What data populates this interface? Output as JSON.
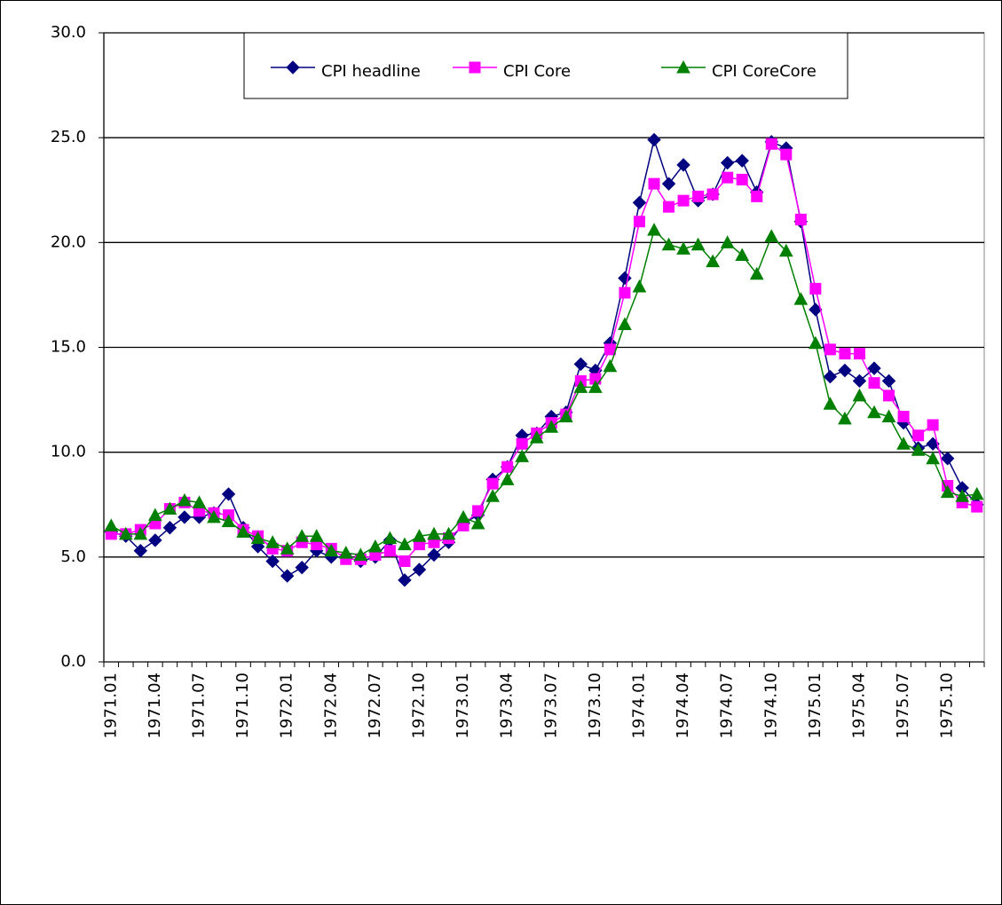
{
  "chart_data": {
    "type": "line",
    "categories": [
      "1971.01",
      null,
      null,
      "1971.04",
      null,
      null,
      "1971.07",
      null,
      null,
      "1971.10",
      null,
      null,
      "1972.01",
      null,
      null,
      "1972.04",
      null,
      null,
      "1972.07",
      null,
      null,
      "1972.10",
      null,
      null,
      "1973.01",
      null,
      null,
      "1973.04",
      null,
      null,
      "1973.07",
      null,
      null,
      "1973.10",
      null,
      null,
      "1974.01",
      null,
      null,
      "1974.04",
      null,
      null,
      "1974.07",
      null,
      null,
      "1974.10",
      null,
      null,
      "1975.01",
      null,
      null,
      "1975.04",
      null,
      null,
      "1975.07",
      null,
      null,
      "1975.10",
      null,
      null
    ],
    "series": [
      {
        "name": "CPI headline",
        "color": "#000080",
        "marker": "diamond",
        "values": [
          6.2,
          6.0,
          5.3,
          5.8,
          6.4,
          6.9,
          6.9,
          7.1,
          8.0,
          6.4,
          5.5,
          4.8,
          4.1,
          4.5,
          5.3,
          5.0,
          5.0,
          4.8,
          5.0,
          5.8,
          3.9,
          4.4,
          5.1,
          5.7,
          6.6,
          7.0,
          8.7,
          9.3,
          10.8,
          10.9,
          11.7,
          11.9,
          14.2,
          13.9,
          15.2,
          18.3,
          21.9,
          24.9,
          22.8,
          23.7,
          22.0,
          22.3,
          23.8,
          23.9,
          22.4,
          24.8,
          24.5,
          21.0,
          16.8,
          13.6,
          13.9,
          13.4,
          14.0,
          13.4,
          11.4,
          10.2,
          10.4,
          9.7,
          8.3,
          7.5
        ]
      },
      {
        "name": "CPI Core",
        "color": "#ff00ff",
        "marker": "square",
        "values": [
          6.1,
          6.1,
          6.3,
          6.6,
          7.3,
          7.6,
          7.2,
          7.1,
          7.0,
          6.3,
          6.0,
          5.4,
          5.3,
          5.7,
          5.6,
          5.4,
          4.9,
          4.9,
          5.1,
          5.3,
          4.8,
          5.6,
          5.7,
          5.9,
          6.5,
          7.2,
          8.5,
          9.3,
          10.4,
          10.9,
          11.4,
          11.8,
          13.4,
          13.5,
          14.9,
          17.6,
          21.0,
          22.8,
          21.7,
          22.0,
          22.2,
          22.3,
          23.1,
          23.0,
          22.2,
          24.7,
          24.2,
          21.1,
          17.8,
          14.9,
          14.7,
          14.7,
          13.3,
          12.7,
          11.7,
          10.8,
          11.3,
          8.4,
          7.6,
          7.4
        ]
      },
      {
        "name": "CPI CoreCore",
        "color": "#008000",
        "marker": "triangle",
        "values": [
          6.5,
          6.1,
          6.1,
          7.0,
          7.3,
          7.7,
          7.6,
          6.9,
          6.7,
          6.2,
          5.9,
          5.7,
          5.4,
          6.0,
          6.0,
          5.3,
          5.2,
          5.1,
          5.5,
          5.9,
          5.6,
          6.0,
          6.1,
          6.1,
          6.9,
          6.6,
          7.9,
          8.7,
          9.8,
          10.7,
          11.2,
          11.7,
          13.1,
          13.1,
          14.1,
          16.1,
          17.9,
          20.6,
          19.9,
          19.7,
          19.9,
          19.1,
          20.0,
          19.4,
          18.5,
          20.3,
          19.6,
          17.3,
          15.2,
          12.3,
          11.6,
          12.7,
          11.9,
          11.7,
          10.4,
          10.1,
          9.7,
          8.1,
          7.9,
          8.0
        ]
      }
    ],
    "ylim": [
      0,
      30
    ],
    "yticks": [
      {
        "value": 0,
        "label": "0.0"
      },
      {
        "value": 5,
        "label": "5.0"
      },
      {
        "value": 10,
        "label": "10.0"
      },
      {
        "value": 15,
        "label": "15.0"
      },
      {
        "value": 20,
        "label": "20.0"
      },
      {
        "value": 25,
        "label": "25.0"
      },
      {
        "value": 30,
        "label": "30.0"
      }
    ],
    "grid": true,
    "legend": "top"
  }
}
